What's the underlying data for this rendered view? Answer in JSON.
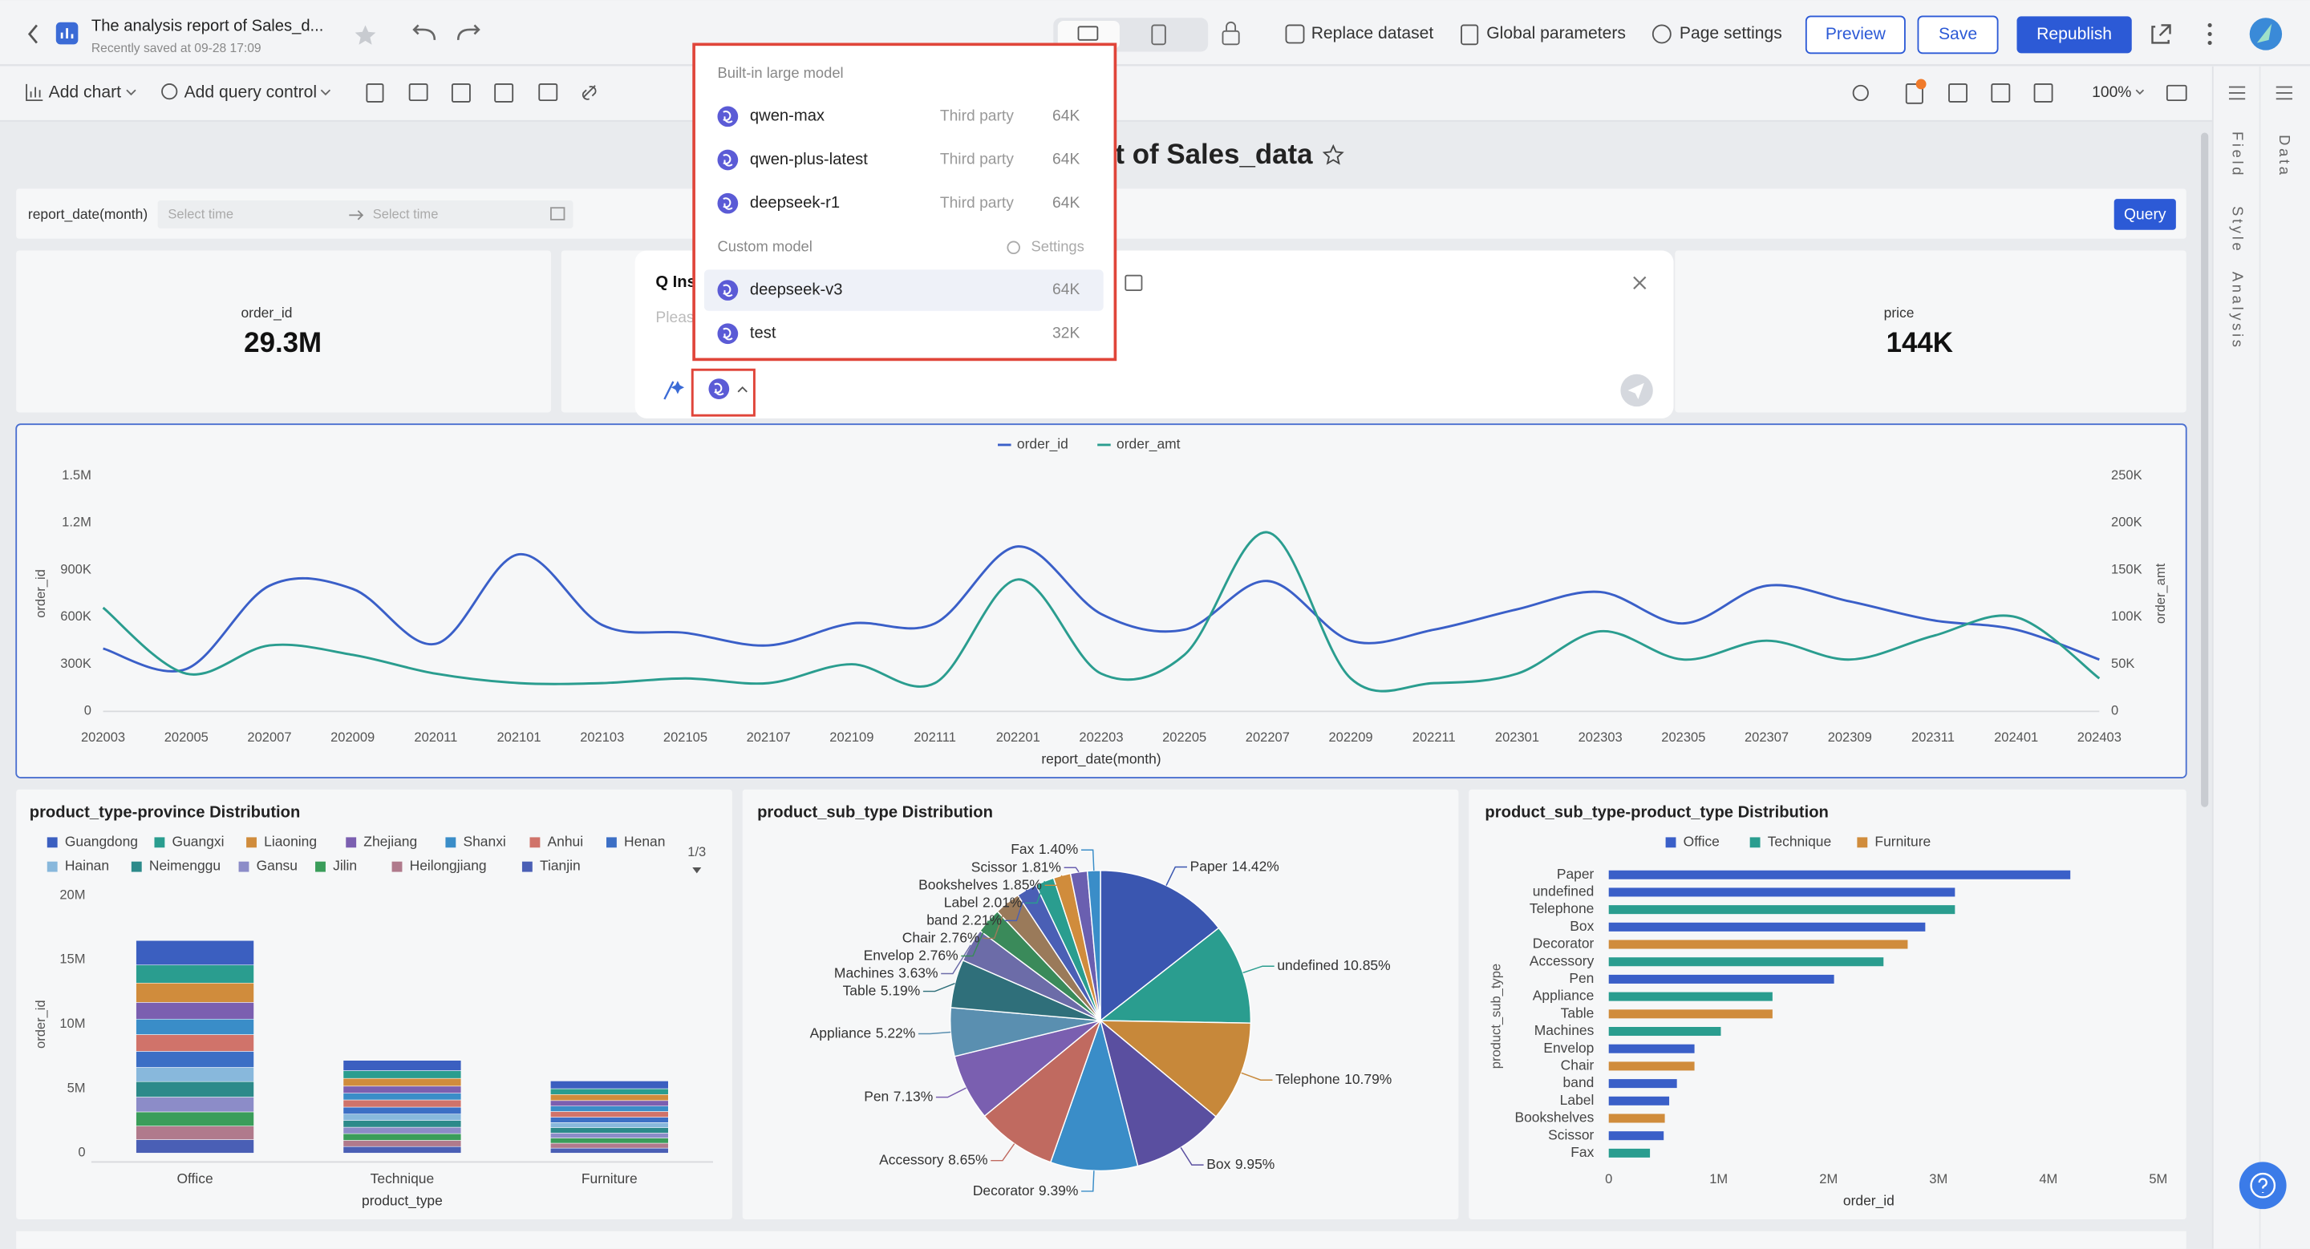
{
  "header": {
    "title": "The analysis report of Sales_d...",
    "saved": "Recently saved at 09-28 17:09",
    "tools": [
      "Replace dataset",
      "Global parameters",
      "Page settings"
    ],
    "buttons": [
      "Preview",
      "Save",
      "Republish"
    ]
  },
  "toolbar": {
    "items": [
      "Add chart",
      "Add query control"
    ],
    "zoom": "100%"
  },
  "side_panel": {
    "tabs": [
      "Field",
      "Style",
      "Analysis"
    ],
    "data_tab": "Data"
  },
  "report": {
    "title": "t of Sales_data",
    "filter": {
      "label": "report_date(month)",
      "start": "Select time",
      "end": "Select time",
      "button": "Query"
    },
    "kpis": [
      {
        "label": "order_id",
        "value": "29.3M"
      },
      {
        "label": "price",
        "value": "144K"
      }
    ]
  },
  "ai_dialog": {
    "title": "Q Ins",
    "placeholder": "Pleas"
  },
  "model_menu": {
    "builtin_title": "Built-in large model",
    "builtin": [
      {
        "name": "qwen-max",
        "tag": "Third party",
        "context": "64K"
      },
      {
        "name": "qwen-plus-latest",
        "tag": "Third party",
        "context": "64K"
      },
      {
        "name": "deepseek-r1",
        "tag": "Third party",
        "context": "64K"
      }
    ],
    "custom_title": "Custom model",
    "settings": "Settings",
    "custom": [
      {
        "name": "deepseek-v3",
        "context": "64K"
      },
      {
        "name": "test",
        "context": "32K"
      }
    ]
  },
  "chart_data": [
    {
      "type": "line",
      "x_label": "report_date(month)",
      "y_label": "order_id",
      "y2_label": "order_amt",
      "legend": "top",
      "categories": [
        "202003",
        "202005",
        "202007",
        "202009",
        "202011",
        "202101",
        "202103",
        "202105",
        "202107",
        "202109",
        "202111",
        "202201",
        "202203",
        "202205",
        "202207",
        "202209",
        "202211",
        "202301",
        "202303",
        "202305",
        "202307",
        "202309",
        "202311",
        "202401",
        "202403"
      ],
      "series": [
        {
          "name": "order_id",
          "color": "#3a5fc8",
          "values": [
            400000,
            270000,
            800000,
            780000,
            430000,
            1000000,
            550000,
            500000,
            420000,
            560000,
            560000,
            1050000,
            620000,
            520000,
            830000,
            450000,
            520000,
            650000,
            760000,
            560000,
            800000,
            700000,
            580000,
            520000,
            330000
          ]
        },
        {
          "name": "order_amt",
          "color": "#2a9d8f",
          "axis": "y2",
          "values": [
            110000,
            40000,
            70000,
            60000,
            40000,
            30000,
            30000,
            35000,
            30000,
            50000,
            30000,
            140000,
            40000,
            60000,
            190000,
            35000,
            30000,
            40000,
            85000,
            55000,
            75000,
            55000,
            80000,
            100000,
            35000
          ]
        }
      ],
      "ylim": [
        0,
        1500000
      ],
      "yticks": [
        0,
        {
          "value": 300000,
          "label": "300K"
        },
        {
          "value": 600000,
          "label": "600K"
        },
        {
          "value": 900000,
          "label": "900K"
        },
        {
          "value": 1200000,
          "label": "1.2M"
        },
        {
          "value": 1500000,
          "label": "1.5M"
        }
      ],
      "y2lim": [
        0,
        250000
      ],
      "y2ticks": [
        0,
        {
          "value": 50000,
          "label": "50K"
        },
        {
          "value": 100000,
          "label": "100K"
        },
        {
          "value": 150000,
          "label": "150K"
        },
        {
          "value": 200000,
          "label": "200K"
        },
        {
          "value": 250000,
          "label": "250K"
        }
      ]
    },
    {
      "type": "stacked_bar",
      "title": "product_type-province Distribution",
      "x_label": "product_type",
      "y_label": "order_id",
      "legend": "top",
      "legend_page": "1/3",
      "categories": [
        "Office",
        "Technique",
        "Furniture"
      ],
      "series": [
        {
          "name": "Guangdong",
          "color": "#3b5fc0",
          "values": [
            1900000,
            800000,
            600000
          ]
        },
        {
          "name": "Guangxi",
          "color": "#2a9d8f",
          "values": [
            1400000,
            600000,
            450000
          ]
        },
        {
          "name": "Liaoning",
          "color": "#d08c3c",
          "values": [
            1500000,
            600000,
            470000
          ]
        },
        {
          "name": "Zhejiang",
          "color": "#7b5fb0",
          "values": [
            1300000,
            550000,
            430000
          ]
        },
        {
          "name": "Shanxi",
          "color": "#3a8dc8",
          "values": [
            1200000,
            520000,
            420000
          ]
        },
        {
          "name": "Anhui",
          "color": "#d0736a",
          "values": [
            1300000,
            560000,
            440000
          ]
        },
        {
          "name": "Henan",
          "color": "#3c6fc5",
          "values": [
            1250000,
            540000,
            420000
          ]
        },
        {
          "name": "Hainan",
          "color": "#88b8dc",
          "values": [
            1100000,
            500000,
            400000
          ]
        },
        {
          "name": "Neimenggu",
          "color": "#2c8a8a",
          "values": [
            1200000,
            520000,
            410000
          ]
        },
        {
          "name": "Gansu",
          "color": "#8c8cc8",
          "values": [
            1150000,
            500000,
            390000
          ]
        },
        {
          "name": "Jilin",
          "color": "#3a9d5a",
          "values": [
            1100000,
            520000,
            400000
          ]
        },
        {
          "name": "Heilongjiang",
          "color": "#b07a8c",
          "values": [
            1050000,
            480000,
            380000
          ]
        },
        {
          "name": "Tianjin",
          "color": "#4a5fb5",
          "values": [
            1050000,
            510000,
            390000
          ]
        }
      ],
      "ylim": [
        0,
        20000000
      ],
      "yticks": [
        0,
        {
          "value": 5000000,
          "label": "5M"
        },
        {
          "value": 10000000,
          "label": "10M"
        },
        {
          "value": 15000000,
          "label": "15M"
        },
        {
          "value": 20000000,
          "label": "20M"
        }
      ]
    },
    {
      "type": "pie",
      "title": "product_sub_type Distribution",
      "categories": [
        "Paper",
        "undefined",
        "Telephone",
        "Box",
        "Decorator",
        "Accessory",
        "Pen",
        "Appliance",
        "Table",
        "Machines",
        "Envelop",
        "Chair",
        "band",
        "Label",
        "Bookshelves",
        "Scissor",
        "Fax"
      ],
      "values": [
        14.42,
        10.85,
        10.79,
        9.95,
        9.39,
        8.65,
        7.13,
        5.22,
        5.19,
        3.63,
        2.76,
        2.76,
        2.21,
        2.01,
        1.85,
        1.81,
        1.4
      ],
      "value_labels": [
        "14.42%",
        "10.85%",
        "10.79%",
        "9.95%",
        "9.39%",
        "8.65%",
        "7.13%",
        "5.22%",
        "5.19%",
        "3.63%",
        "2.76%",
        "2.76%",
        "2.21%",
        "2.01%",
        "1.85%",
        "1.81%",
        "1.40%"
      ],
      "colors": [
        "#3a56b0",
        "#2a9d8f",
        "#c7883a",
        "#5a4fa0",
        "#3a8dc8",
        "#c06a60",
        "#7a5fb0",
        "#5a8fb0",
        "#2f6f7a",
        "#6c6ca8",
        "#3a8a5a",
        "#9a7a5a",
        "#4a5fb5",
        "#2a9d8f",
        "#d08c3c",
        "#6a5fb0",
        "#3a8dc8"
      ]
    },
    {
      "type": "hbar",
      "title": "product_sub_type-product_type Distribution",
      "x_label": "order_id",
      "y_label": "product_sub_type",
      "legend": "top",
      "categories": [
        "Paper",
        "undefined",
        "Telephone",
        "Box",
        "Decorator",
        "Accessory",
        "Pen",
        "Appliance",
        "Table",
        "Machines",
        "Envelop",
        "Chair",
        "band",
        "Label",
        "Bookshelves",
        "Scissor",
        "Fax"
      ],
      "series": [
        {
          "name": "Office",
          "color": "#3a5fc8",
          "values": [
            4200000,
            3150000,
            null,
            2880000,
            null,
            null,
            2050000,
            null,
            null,
            null,
            780000,
            null,
            620000,
            550000,
            null,
            500000,
            null
          ]
        },
        {
          "name": "Technique",
          "color": "#2a9d8f",
          "values": [
            null,
            null,
            3150000,
            null,
            null,
            2500000,
            null,
            1490000,
            null,
            1020000,
            null,
            null,
            null,
            null,
            null,
            null,
            375000
          ]
        },
        {
          "name": "Furniture",
          "color": "#d08c3c",
          "values": [
            null,
            null,
            null,
            null,
            2720000,
            null,
            null,
            null,
            1490000,
            null,
            null,
            780000,
            null,
            null,
            510000,
            null,
            null
          ]
        }
      ],
      "xlim": [
        0,
        5000000
      ],
      "xticks": [
        0,
        {
          "value": 1000000,
          "label": "1M"
        },
        {
          "value": 2000000,
          "label": "2M"
        },
        {
          "value": 3000000,
          "label": "3M"
        },
        {
          "value": 4000000,
          "label": "4M"
        },
        {
          "value": 5000000,
          "label": "5M"
        }
      ]
    }
  ]
}
